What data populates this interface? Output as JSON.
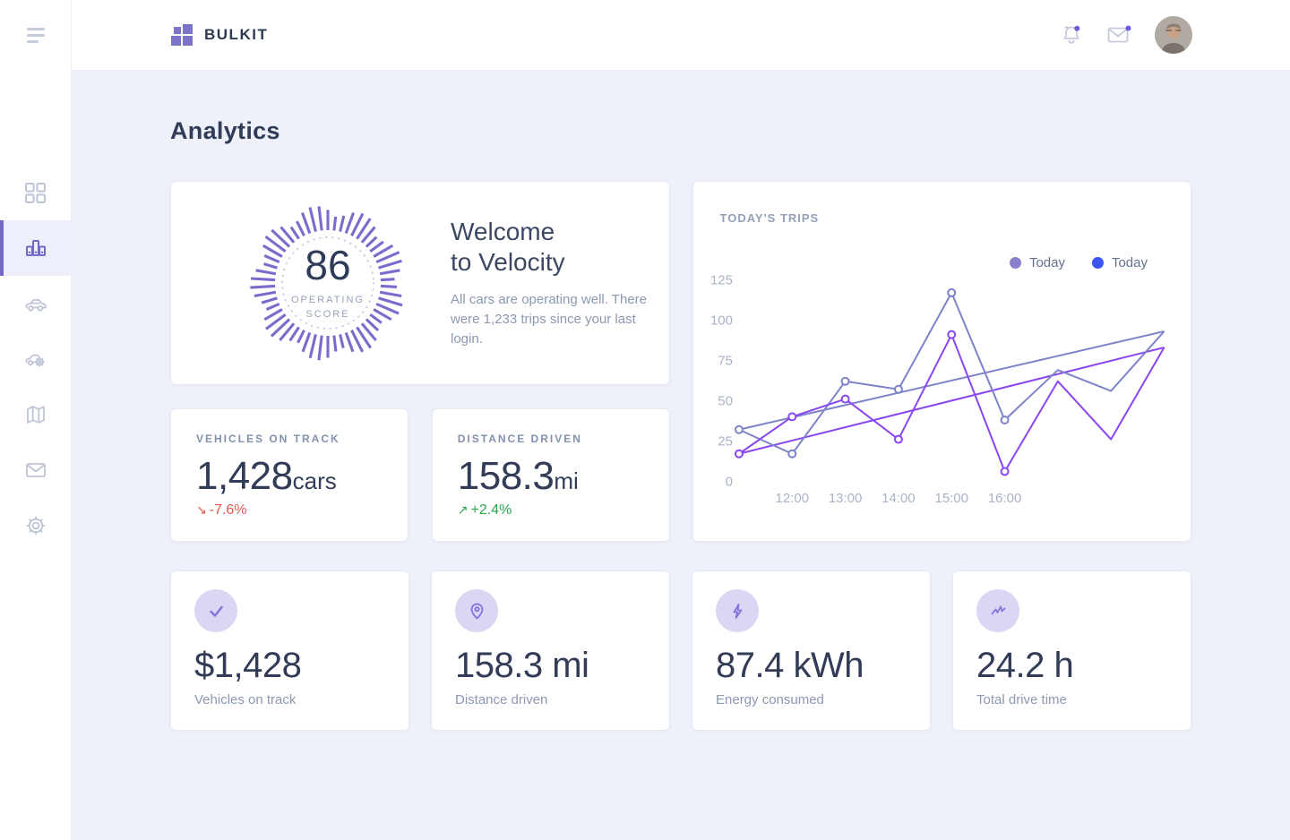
{
  "brand": {
    "name": "BULKIT",
    "logo_color": "#7c74c9"
  },
  "header": {
    "icons": [
      {
        "name": "bell-icon",
        "badge": true
      },
      {
        "name": "mail-icon",
        "badge": true
      },
      {
        "name": "avatar"
      }
    ],
    "badge_color": "#6b59e0"
  },
  "sidebar": {
    "active_color": "#7467c6",
    "items": [
      {
        "name": "dashboard",
        "icon": "grid-icon",
        "active": false
      },
      {
        "name": "analytics",
        "icon": "bar-chart-icon",
        "active": true
      },
      {
        "name": "vehicles",
        "icon": "car-icon",
        "active": false
      },
      {
        "name": "service",
        "icon": "car-service-icon",
        "active": false
      },
      {
        "name": "map",
        "icon": "map-icon",
        "active": false
      },
      {
        "name": "messages",
        "icon": "envelope-icon",
        "active": false
      },
      {
        "name": "settings",
        "icon": "gear-icon",
        "active": false
      }
    ]
  },
  "page": {
    "title": "Analytics"
  },
  "welcome": {
    "score": "86",
    "score_label_line1": "OPERATING",
    "score_label_line2": "SCORE",
    "gauge_tick_color": "#7a6ccd",
    "gauge_dot_color": "#c6cee9",
    "title_line1": "Welcome",
    "title_line2": "to Velocity",
    "body": "All cars are operating well. There were 1,233 trips since your last login."
  },
  "stats": [
    {
      "label": "VEHICLES ON TRACK",
      "value": "1,428",
      "unit": "cars",
      "arrow": "↘",
      "delta": "-7.6%",
      "delta_color": "#e4574e"
    },
    {
      "label": "DISTANCE DRIVEN",
      "value": "158.3",
      "unit": "mi",
      "arrow": "↗",
      "delta": "+2.4%",
      "delta_color": "#29a84e"
    }
  ],
  "chart_card": {
    "title": "TODAY'S TRIPS",
    "legend": [
      {
        "label": "Today",
        "color": "#8a81ce"
      },
      {
        "label": "Today",
        "color": "#3c55f0"
      }
    ]
  },
  "chart_data": {
    "type": "line",
    "x_labels": [
      "12:00",
      "13:00",
      "14:00",
      "15:00",
      "16:00"
    ],
    "x_label_point_offset": 1,
    "y_ticks": [
      0,
      25,
      50,
      75,
      100,
      125
    ],
    "ylim": [
      0,
      125
    ],
    "grid": false,
    "legend_position": "top-right",
    "series": [
      {
        "name": "Today A trend",
        "type": "trend",
        "color": "#7d83c8",
        "values": [
          32,
          93
        ]
      },
      {
        "name": "Today B trend",
        "type": "trend",
        "color": "#8a46f2",
        "values": [
          17,
          83
        ]
      },
      {
        "name": "Today A",
        "type": "line",
        "color": "#7d83c8",
        "values": [
          32,
          17,
          62,
          57,
          117,
          38,
          69,
          56,
          93
        ],
        "marker_points": 6
      },
      {
        "name": "Today B",
        "type": "line",
        "color": "#8a46f2",
        "values": [
          17,
          40,
          51,
          26,
          91,
          6,
          62,
          26,
          83
        ],
        "marker_points": 6
      }
    ]
  },
  "kpis": [
    {
      "icon": "check-icon",
      "value": "$1,428",
      "caption": "Vehicles on track"
    },
    {
      "icon": "map-pin-icon",
      "value": "158.3 mi",
      "caption": "Distance driven"
    },
    {
      "icon": "bolt-icon",
      "value": "87.4 kWh",
      "caption": "Energy consumed"
    },
    {
      "icon": "activity-icon",
      "value": "24.2 h",
      "caption": "Total drive time"
    }
  ]
}
